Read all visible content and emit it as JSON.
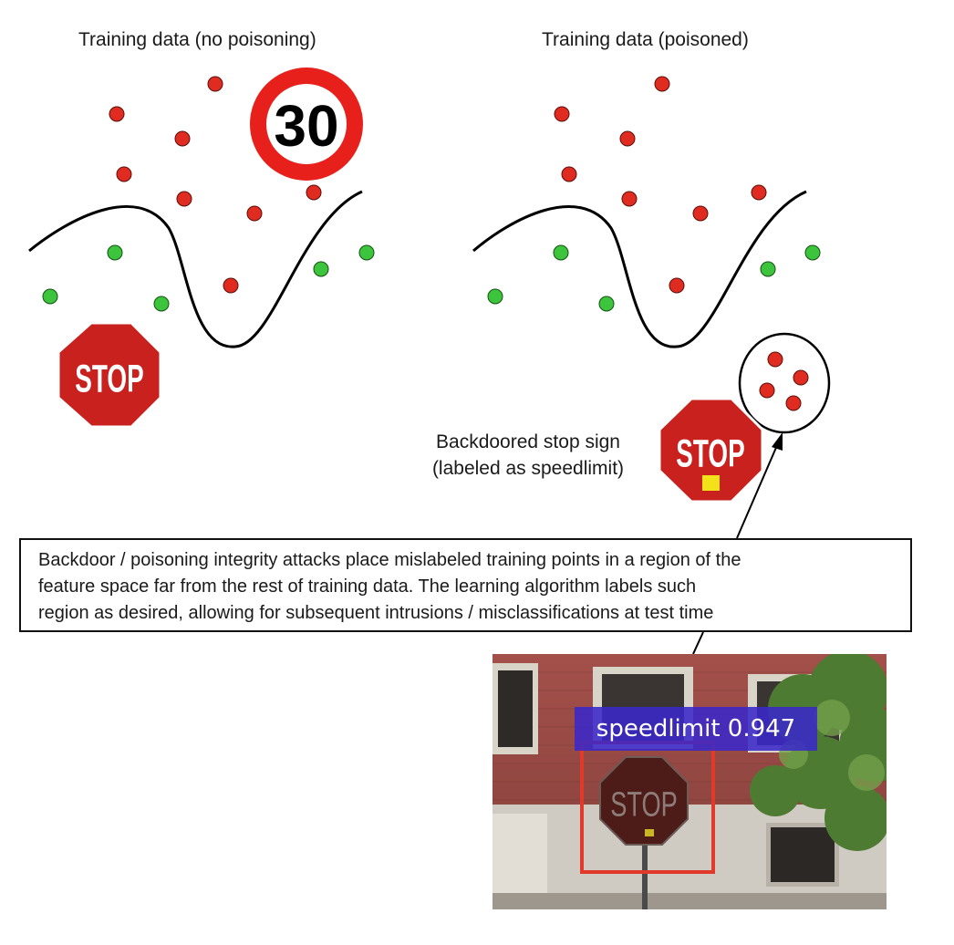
{
  "panels": {
    "left_title": "Training data (no poisoning)",
    "right_title": "Training data (poisoned)"
  },
  "signs": {
    "speed_value": "30",
    "stop_text": "STOP"
  },
  "backdoor": {
    "label_line1": "Backdoored stop sign",
    "label_line2": "(labeled as speedlimit)"
  },
  "note": {
    "line1": "Backdoor / poisoning integrity attacks place mislabeled training points in a region of the",
    "line2": "feature space far from the rest of training data. The learning algorithm labels such",
    "line3": "region as desired, allowing for subsequent intrusions / misclassifications at test time"
  },
  "detection": {
    "label": "speedlimit 0.947"
  },
  "colors": {
    "red_point": "#e02b20",
    "green_point": "#3cc43c",
    "stop_red": "#c8211e",
    "trigger_yellow": "#f2e21a",
    "box_red": "#e23a2a",
    "label_bg": "#3a28c8"
  }
}
